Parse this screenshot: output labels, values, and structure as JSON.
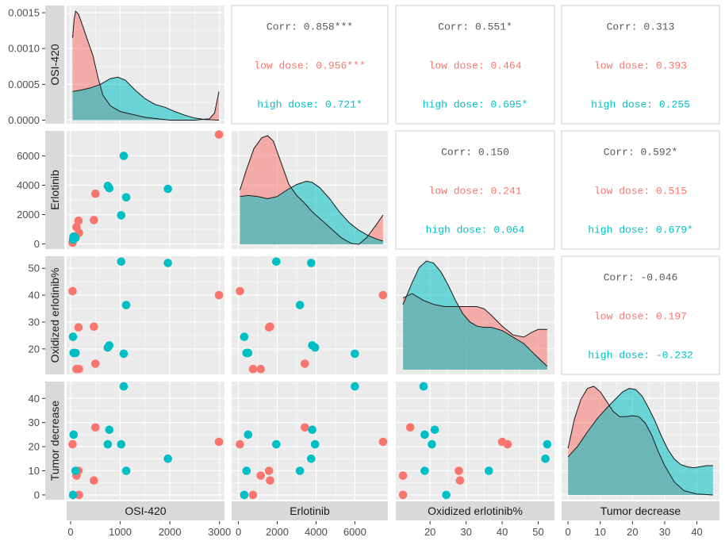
{
  "chart_data": {
    "type": "scatter",
    "variables": [
      "OSI-420",
      "Erlotinib",
      "Oxidized erlotinib%",
      "Tumor decrease"
    ],
    "groups": [
      {
        "name": "low dose",
        "color": "#f8766d"
      },
      {
        "name": "high dose",
        "color": "#00bfc4"
      }
    ],
    "axes": [
      {
        "range": [
          -80,
          3100
        ],
        "ticks": [
          0,
          1000,
          2000,
          3000
        ],
        "tick_labels": [
          "0",
          "1000",
          "2000",
          "3000"
        ]
      },
      {
        "range": [
          -350,
          7700
        ],
        "ticks": [
          0,
          2000,
          4000,
          6000
        ],
        "tick_labels": [
          "0",
          "2000",
          "4000",
          "6000"
        ]
      },
      {
        "range": [
          10.5,
          54.5
        ],
        "ticks": [
          20,
          30,
          40,
          50
        ],
        "tick_labels": [
          "20",
          "30",
          "40",
          "50"
        ]
      },
      {
        "range": [
          -2,
          47
        ],
        "ticks": [
          0,
          10,
          20,
          30,
          40
        ],
        "tick_labels": [
          "0",
          "10",
          "20",
          "30",
          "40"
        ]
      }
    ],
    "osi_density_axis": {
      "range": [
        -5e-05,
        0.0016
      ],
      "ticks": [
        0,
        0.0005,
        0.001,
        0.0015
      ],
      "tick_labels": [
        "0.0000",
        "0.0005",
        "0.0010",
        "0.0015"
      ]
    },
    "observations": [
      {
        "g": 0,
        "v": [
          40,
          80,
          41.5,
          21
        ]
      },
      {
        "g": 0,
        "v": [
          120,
          1150,
          12.5,
          8
        ]
      },
      {
        "g": 0,
        "v": [
          160,
          1580,
          28,
          10
        ]
      },
      {
        "g": 0,
        "v": [
          170,
          750,
          12.5,
          0
        ]
      },
      {
        "g": 0,
        "v": [
          470,
          1630,
          28.3,
          6
        ]
      },
      {
        "g": 0,
        "v": [
          500,
          3420,
          14.5,
          28
        ]
      },
      {
        "g": 0,
        "v": [
          2990,
          7450,
          40,
          22
        ]
      },
      {
        "g": 1,
        "v": [
          50,
          300,
          24.5,
          0
        ]
      },
      {
        "g": 1,
        "v": [
          60,
          500,
          18.5,
          25
        ]
      },
      {
        "g": 1,
        "v": [
          100,
          420,
          18.5,
          10
        ]
      },
      {
        "g": 1,
        "v": [
          750,
          3950,
          20.5,
          21
        ]
      },
      {
        "g": 1,
        "v": [
          780,
          3800,
          21.3,
          27
        ]
      },
      {
        "g": 1,
        "v": [
          1020,
          1950,
          52.5,
          21
        ]
      },
      {
        "g": 1,
        "v": [
          1070,
          6000,
          18.2,
          45
        ]
      },
      {
        "g": 1,
        "v": [
          1120,
          3170,
          36.3,
          10
        ]
      },
      {
        "g": 1,
        "v": [
          1960,
          3750,
          52,
          15
        ]
      }
    ],
    "correlations": [
      {
        "row": 0,
        "col": 1,
        "lines": [
          "Corr: 0.858***",
          "low dose: 0.956***",
          "high dose: 0.721*"
        ]
      },
      {
        "row": 0,
        "col": 2,
        "lines": [
          "Corr: 0.551*",
          "low dose: 0.464",
          "high dose: 0.695*"
        ]
      },
      {
        "row": 0,
        "col": 3,
        "lines": [
          "Corr: 0.313",
          "low dose: 0.393",
          "high dose: 0.255"
        ]
      },
      {
        "row": 1,
        "col": 2,
        "lines": [
          "Corr: 0.150",
          "low dose: 0.241",
          "high dose: 0.064"
        ]
      },
      {
        "row": 1,
        "col": 3,
        "lines": [
          "Corr: 0.592*",
          "low dose: 0.515",
          "high dose: 0.679*"
        ]
      },
      {
        "row": 2,
        "col": 3,
        "lines": [
          "Corr: -0.046",
          "low dose: 0.197",
          "high dose: -0.232"
        ]
      }
    ],
    "densities": [
      {
        "var": 0,
        "low": [
          [
            40,
            0.00115
          ],
          [
            70,
            0.0014
          ],
          [
            100,
            0.00152
          ],
          [
            160,
            0.00148
          ],
          [
            250,
            0.0013
          ],
          [
            350,
            0.0011
          ],
          [
            450,
            0.0009
          ],
          [
            550,
            0.0006
          ],
          [
            650,
            0.00035
          ],
          [
            800,
            0.0002
          ],
          [
            1000,
            0.00012
          ],
          [
            1500,
            4e-05
          ],
          [
            2000,
            0.0
          ],
          [
            2500,
            0.0
          ],
          [
            2800,
            2e-05
          ],
          [
            2900,
            0.0001
          ],
          [
            2960,
            0.0003
          ],
          [
            2990,
            0.0004
          ]
        ],
        "high": [
          [
            40,
            0.0004
          ],
          [
            200,
            0.00042
          ],
          [
            400,
            0.00045
          ],
          [
            600,
            0.0005
          ],
          [
            800,
            0.00058
          ],
          [
            950,
            0.0006
          ],
          [
            1100,
            0.00056
          ],
          [
            1300,
            0.00042
          ],
          [
            1500,
            0.0003
          ],
          [
            1700,
            0.00022
          ],
          [
            1900,
            0.00018
          ],
          [
            2100,
            0.00012
          ],
          [
            2300,
            7e-05
          ],
          [
            2500,
            3e-05
          ],
          [
            2700,
            1e-05
          ],
          [
            2990,
            0.0
          ]
        ]
      },
      {
        "var": 1,
        "low": [
          [
            80,
            0.5
          ],
          [
            400,
            0.68
          ],
          [
            800,
            0.88
          ],
          [
            1200,
            0.98
          ],
          [
            1500,
            1.0
          ],
          [
            1800,
            0.95
          ],
          [
            2200,
            0.75
          ],
          [
            2600,
            0.55
          ],
          [
            3000,
            0.45
          ],
          [
            3400,
            0.38
          ],
          [
            3800,
            0.3
          ],
          [
            4300,
            0.22
          ],
          [
            4800,
            0.14
          ],
          [
            5300,
            0.06
          ],
          [
            5800,
            0.01
          ],
          [
            6200,
            0.0
          ],
          [
            6600,
            0.06
          ],
          [
            7100,
            0.18
          ],
          [
            7450,
            0.27
          ]
        ],
        "high": [
          [
            80,
            0.44
          ],
          [
            500,
            0.45
          ],
          [
            1000,
            0.44
          ],
          [
            1500,
            0.42
          ],
          [
            2000,
            0.44
          ],
          [
            2500,
            0.5
          ],
          [
            3000,
            0.55
          ],
          [
            3500,
            0.58
          ],
          [
            3800,
            0.57
          ],
          [
            4200,
            0.52
          ],
          [
            4700,
            0.42
          ],
          [
            5200,
            0.3
          ],
          [
            5700,
            0.2
          ],
          [
            6200,
            0.13
          ],
          [
            6700,
            0.08
          ],
          [
            7100,
            0.05
          ],
          [
            7450,
            0.03
          ]
        ]
      },
      {
        "var": 2,
        "low": [
          [
            12.5,
            0.66
          ],
          [
            15,
            0.7
          ],
          [
            18,
            0.64
          ],
          [
            21,
            0.6
          ],
          [
            24,
            0.58
          ],
          [
            27,
            0.58
          ],
          [
            29,
            0.58
          ],
          [
            31,
            0.58
          ],
          [
            33,
            0.58
          ],
          [
            35,
            0.56
          ],
          [
            37,
            0.5
          ],
          [
            40,
            0.4
          ],
          [
            43,
            0.32
          ],
          [
            46,
            0.3
          ],
          [
            48,
            0.34
          ],
          [
            50,
            0.37
          ],
          [
            52.5,
            0.37
          ]
        ],
        "high": [
          [
            12.5,
            0.6
          ],
          [
            15,
            0.8
          ],
          [
            17,
            0.94
          ],
          [
            19,
            1.0
          ],
          [
            21,
            0.98
          ],
          [
            23,
            0.9
          ],
          [
            25,
            0.78
          ],
          [
            27,
            0.64
          ],
          [
            29,
            0.52
          ],
          [
            31,
            0.44
          ],
          [
            33,
            0.4
          ],
          [
            35,
            0.39
          ],
          [
            37,
            0.39
          ],
          [
            40,
            0.36
          ],
          [
            43,
            0.3
          ],
          [
            46,
            0.24
          ],
          [
            49,
            0.14
          ],
          [
            52.5,
            0.03
          ]
        ]
      },
      {
        "var": 3,
        "low": [
          [
            0,
            0.43
          ],
          [
            2,
            0.7
          ],
          [
            4,
            0.88
          ],
          [
            6,
            0.98
          ],
          [
            8,
            1.0
          ],
          [
            10,
            0.95
          ],
          [
            12,
            0.86
          ],
          [
            14,
            0.77
          ],
          [
            16,
            0.72
          ],
          [
            18,
            0.72
          ],
          [
            20,
            0.73
          ],
          [
            22,
            0.72
          ],
          [
            24,
            0.66
          ],
          [
            26,
            0.55
          ],
          [
            28,
            0.4
          ],
          [
            30,
            0.27
          ],
          [
            33,
            0.12
          ],
          [
            36,
            0.04
          ],
          [
            40,
            0.01
          ],
          [
            45,
            0.0
          ]
        ],
        "high": [
          [
            0,
            0.35
          ],
          [
            3,
            0.45
          ],
          [
            6,
            0.58
          ],
          [
            9,
            0.7
          ],
          [
            12,
            0.8
          ],
          [
            15,
            0.89
          ],
          [
            17,
            0.95
          ],
          [
            19,
            0.98
          ],
          [
            21,
            0.97
          ],
          [
            23,
            0.91
          ],
          [
            25,
            0.8
          ],
          [
            27,
            0.68
          ],
          [
            29,
            0.54
          ],
          [
            31,
            0.42
          ],
          [
            33,
            0.33
          ],
          [
            35,
            0.28
          ],
          [
            37,
            0.26
          ],
          [
            39,
            0.25
          ],
          [
            41,
            0.26
          ],
          [
            43,
            0.27
          ],
          [
            45,
            0.27
          ]
        ]
      }
    ]
  }
}
